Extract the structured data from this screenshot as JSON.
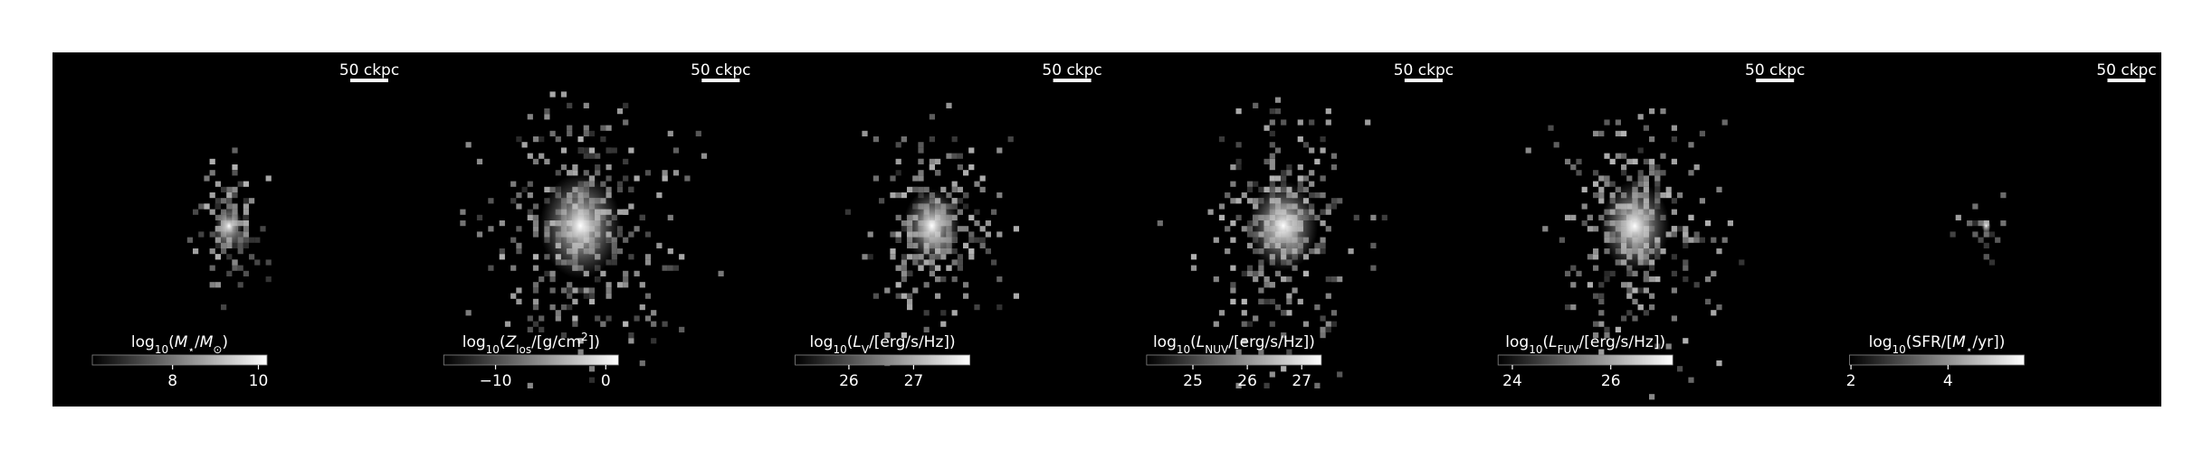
{
  "panels": [
    {
      "label": [
        {
          "text": "log"
        },
        {
          "text": "10",
          "sub": true
        },
        {
          "text": "("
        },
        {
          "text": "M",
          "italic": true
        },
        {
          "text": "⋆",
          "sub": true
        },
        {
          "text": "/"
        },
        {
          "text": "M",
          "italic": true
        },
        {
          "text": "⊙",
          "sub": true
        },
        {
          "text": ")"
        }
      ],
      "scale_bar": "50 ckpc",
      "clim": [
        6.13,
        10.2
      ],
      "ticks": [
        8,
        10
      ],
      "spread": 0.35
    },
    {
      "label": [
        {
          "text": "log"
        },
        {
          "text": "10",
          "sub": true
        },
        {
          "text": "("
        },
        {
          "text": "Z",
          "italic": true
        },
        {
          "text": "los",
          "sub": true
        },
        {
          "text": "/[g/cm"
        },
        {
          "text": "2",
          "sup": true
        },
        {
          "text": "])"
        }
      ],
      "scale_bar": "50 ckpc",
      "clim": [
        -14.7,
        1.15
      ],
      "ticks": [
        {
          "value": -10,
          "label": "−10"
        },
        0
      ],
      "spread": 1
    },
    {
      "label": [
        {
          "text": "log"
        },
        {
          "text": "10",
          "sub": true
        },
        {
          "text": "("
        },
        {
          "text": "L",
          "italic": true
        },
        {
          "text": "V",
          "sub": true
        },
        {
          "text": "/[erg/s/Hz])"
        }
      ],
      "scale_bar": "50 ckpc",
      "clim": [
        25.17,
        27.87
      ],
      "ticks": [
        26,
        27
      ],
      "spread": 0.7
    },
    {
      "label": [
        {
          "text": "log"
        },
        {
          "text": "10",
          "sub": true
        },
        {
          "text": "("
        },
        {
          "text": "L",
          "italic": true
        },
        {
          "text": "NUV",
          "sub": true
        },
        {
          "text": "/[erg/s/Hz])"
        }
      ],
      "scale_bar": "50 ckpc",
      "clim": [
        24.15,
        27.36
      ],
      "ticks": [
        25,
        26,
        27
      ],
      "spread": 0.85
    },
    {
      "label": [
        {
          "text": "log"
        },
        {
          "text": "10",
          "sub": true
        },
        {
          "text": "("
        },
        {
          "text": "L",
          "italic": true
        },
        {
          "text": "FUV",
          "sub": true
        },
        {
          "text": "/[erg/s/Hz])"
        }
      ],
      "scale_bar": "50 ckpc",
      "clim": [
        23.71,
        27.26
      ],
      "ticks": [
        24,
        26
      ],
      "spread": 0.85
    },
    {
      "label": [
        {
          "text": "log"
        },
        {
          "text": "10",
          "sub": true
        },
        {
          "text": "(SFR/["
        },
        {
          "text": "M",
          "italic": true
        },
        {
          "text": "⋆",
          "sub": true
        },
        {
          "text": "/yr])"
        }
      ],
      "scale_bar": "50 ckpc",
      "clim": [
        1.97,
        5.57
      ],
      "ticks": [
        2,
        4
      ],
      "spread": 0.05
    }
  ]
}
